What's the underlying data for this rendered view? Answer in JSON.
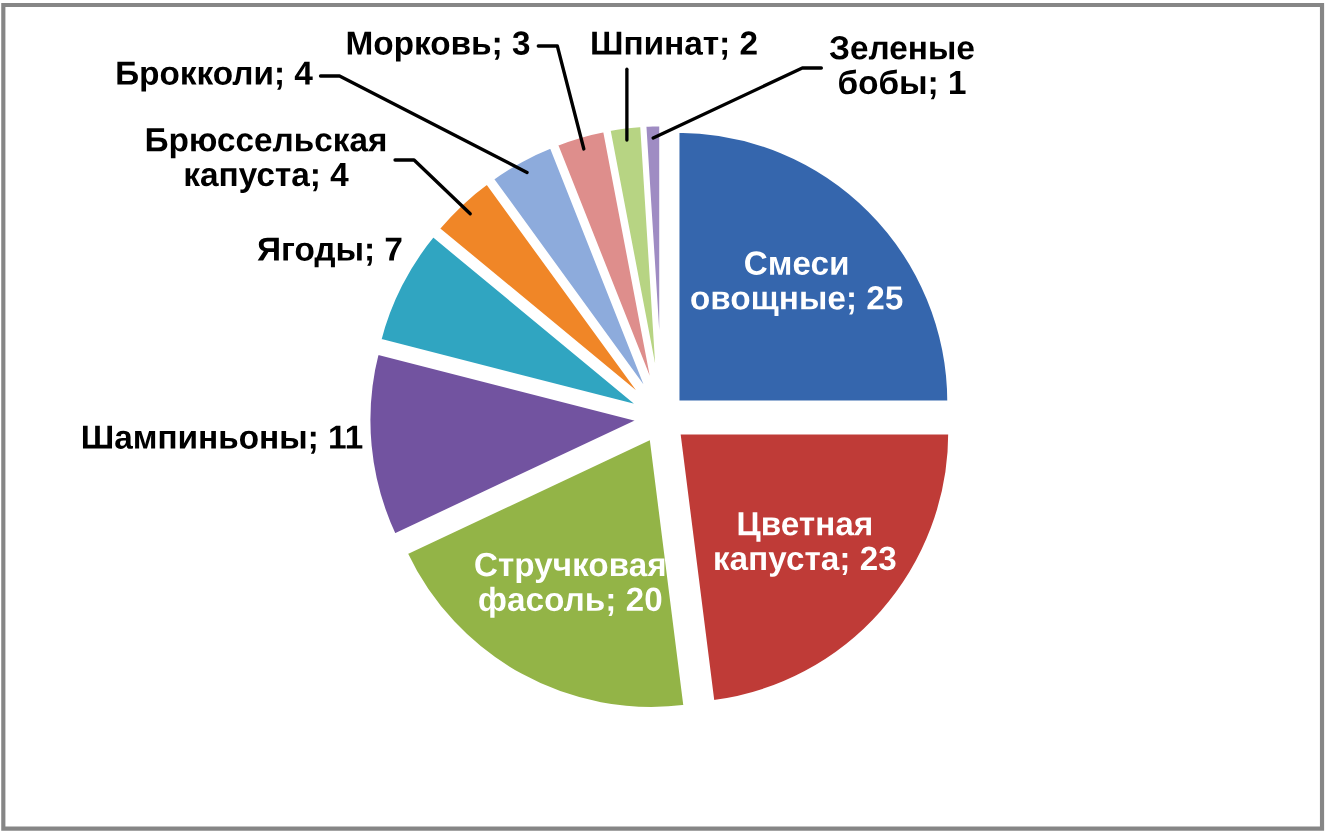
{
  "chart_data": {
    "type": "pie",
    "categories": [
      "Смеси овощные; 25",
      "Цветная капуста; 23",
      "Стручковая фасоль; 20",
      "Шампиньоны; 11",
      "Ягоды; 7",
      "Брюссельская капуста; 4",
      "Брокколи; 4",
      "Морковь; 3",
      "Шпинат; 2",
      "Зеленые бобы; 1"
    ],
    "values": [
      25,
      23,
      20,
      11,
      7,
      4,
      4,
      3,
      2,
      1
    ],
    "colors": [
      "#3566ad",
      "#bf3b37",
      "#93b447",
      "#7253a0",
      "#30a5c1",
      "#f08627",
      "#8dabdc",
      "#de8e8c",
      "#b7d483",
      "#9f8cc3"
    ]
  }
}
